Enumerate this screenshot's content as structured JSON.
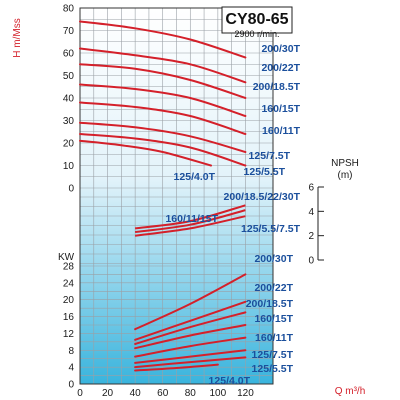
{
  "chart_data": {
    "type": "line",
    "title": "CY80-65",
    "subtitle": "2900 r/min.",
    "xlabel": "Q m³/h",
    "x_ticks": [
      "0",
      "20",
      "40",
      "60",
      "80",
      "100",
      "120"
    ],
    "xlim": [
      0,
      140
    ],
    "grid": true,
    "colors": {
      "curve": "#d4202a",
      "label": "#1b4f9c",
      "axis_red": "#d4202a",
      "bg_top": "#ffffff",
      "bg_bottom": "#39b4dd"
    },
    "head": {
      "ylabel": "H m/Mss",
      "ylim": [
        0,
        80
      ],
      "y_ticks": [
        "0",
        "10",
        "20",
        "30",
        "40",
        "50",
        "60",
        "70",
        "80"
      ],
      "series": [
        {
          "name": "200/30T",
          "x": [
            0,
            40,
            80,
            120
          ],
          "values": [
            74,
            71,
            66,
            58
          ]
        },
        {
          "name": "200/22T",
          "x": [
            0,
            40,
            80,
            120
          ],
          "values": [
            62,
            59,
            55,
            47
          ]
        },
        {
          "name": "200/18.5T",
          "x": [
            0,
            40,
            80,
            120
          ],
          "values": [
            55,
            53,
            48,
            40
          ]
        },
        {
          "name": "160/15T",
          "x": [
            0,
            40,
            80,
            120
          ],
          "values": [
            46,
            44,
            40,
            32
          ]
        },
        {
          "name": "160/11T",
          "x": [
            0,
            40,
            80,
            120
          ],
          "values": [
            38,
            36,
            32,
            24
          ]
        },
        {
          "name": "125/7.5T",
          "x": [
            0,
            40,
            80,
            120
          ],
          "values": [
            29,
            27,
            23,
            16
          ]
        },
        {
          "name": "125/5.5T",
          "x": [
            0,
            40,
            80,
            120
          ],
          "values": [
            24,
            22,
            18,
            10
          ]
        },
        {
          "name": "125/4.0T",
          "x": [
            0,
            30,
            60,
            95
          ],
          "values": [
            21,
            19,
            16,
            10
          ]
        }
      ]
    },
    "npsh": {
      "ylabel": "NPSH (m)",
      "ylim": [
        0,
        6
      ],
      "y_ticks": [
        "0",
        "2",
        "4",
        "6"
      ],
      "series": [
        {
          "name": "200/18.5/22/30T",
          "x": [
            40,
            80,
            120
          ],
          "values": [
            2.3,
            2.9,
            4.1
          ]
        },
        {
          "name": "125/5.5/7.5T",
          "x": [
            40,
            80,
            120
          ],
          "values": [
            2.0,
            2.6,
            3.6
          ]
        },
        {
          "name": "160/11/15T",
          "x": [
            40,
            80,
            120
          ],
          "values": [
            2.6,
            3.2,
            4.5
          ]
        }
      ]
    },
    "power": {
      "ylabel": "KW",
      "ylim": [
        0,
        28
      ],
      "y_ticks": [
        "0",
        "4",
        "8",
        "12",
        "16",
        "20",
        "24",
        "28"
      ],
      "series": [
        {
          "name": "200/30T",
          "x": [
            40,
            80,
            120
          ],
          "values": [
            13,
            19,
            26
          ]
        },
        {
          "name": "200/22T",
          "x": [
            40,
            80,
            120
          ],
          "values": [
            10.5,
            15,
            19.5
          ]
        },
        {
          "name": "200/18.5T",
          "x": [
            40,
            80,
            120
          ],
          "values": [
            9.5,
            13.5,
            17
          ]
        },
        {
          "name": "160/15T",
          "x": [
            40,
            80,
            120
          ],
          "values": [
            8.5,
            11.5,
            14
          ]
        },
        {
          "name": "160/11T",
          "x": [
            40,
            80,
            120
          ],
          "values": [
            6.5,
            9,
            11
          ]
        },
        {
          "name": "125/7.5T",
          "x": [
            40,
            80,
            120
          ],
          "values": [
            5,
            6.5,
            8
          ]
        },
        {
          "name": "125/5.5T",
          "x": [
            40,
            80,
            120
          ],
          "values": [
            4,
            5.2,
            6.3
          ]
        },
        {
          "name": "125/4.0T",
          "x": [
            40,
            70,
            100
          ],
          "values": [
            3.2,
            3.8,
            4.6
          ]
        }
      ]
    }
  }
}
